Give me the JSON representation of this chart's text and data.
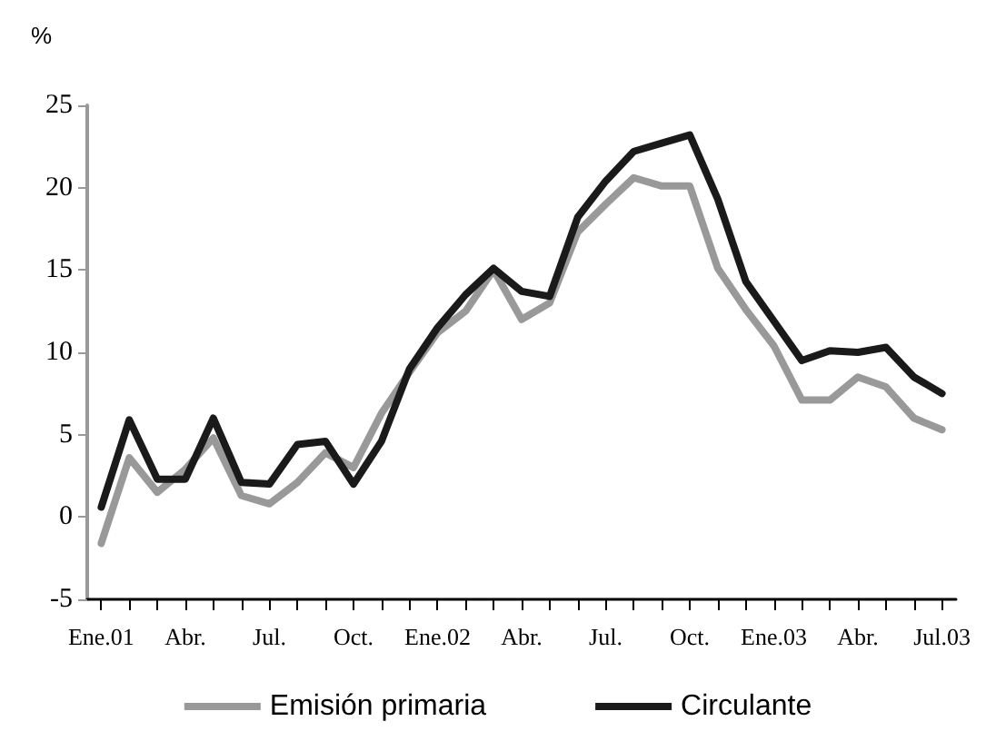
{
  "chart_data": {
    "type": "line",
    "ylabel": "%",
    "categories": [
      "Ene.01",
      null,
      null,
      "Abr.",
      null,
      null,
      "Jul.",
      null,
      null,
      "Oct.",
      null,
      null,
      "Ene.02",
      null,
      null,
      "Abr.",
      null,
      null,
      "Jul.",
      null,
      null,
      "Oct.",
      null,
      null,
      "Ene.03",
      null,
      null,
      "Abr.",
      null,
      null,
      "Jul.03"
    ],
    "series": [
      {
        "name": "Emisión primaria",
        "color": "#999999",
        "values": [
          -1.6,
          3.6,
          1.5,
          2.9,
          4.8,
          1.3,
          0.8,
          2.1,
          3.9,
          3.0,
          6.3,
          8.8,
          11.2,
          12.5,
          15.0,
          12.0,
          13.0,
          17.3,
          19.0,
          20.6,
          20.1,
          20.1,
          15.1,
          12.6,
          10.4,
          7.1,
          7.1,
          8.5,
          7.9,
          6.0,
          5.3
        ]
      },
      {
        "name": "Circulante",
        "color": "#1a1a1a",
        "values": [
          0.6,
          5.9,
          2.3,
          2.3,
          6.0,
          2.1,
          2.0,
          4.4,
          4.6,
          2.0,
          4.6,
          9.0,
          11.5,
          13.5,
          15.1,
          13.7,
          13.4,
          18.2,
          20.4,
          22.2,
          22.7,
          23.2,
          19.3,
          14.3,
          11.9,
          9.5,
          10.1,
          10.0,
          10.3,
          8.5,
          7.5
        ]
      }
    ],
    "ylim": [
      -5,
      25
    ],
    "yticks": [
      -5,
      0,
      5,
      10,
      15,
      20,
      25
    ],
    "grid": false,
    "legend": "bottom",
    "marker": "none",
    "line_style": "solid"
  }
}
